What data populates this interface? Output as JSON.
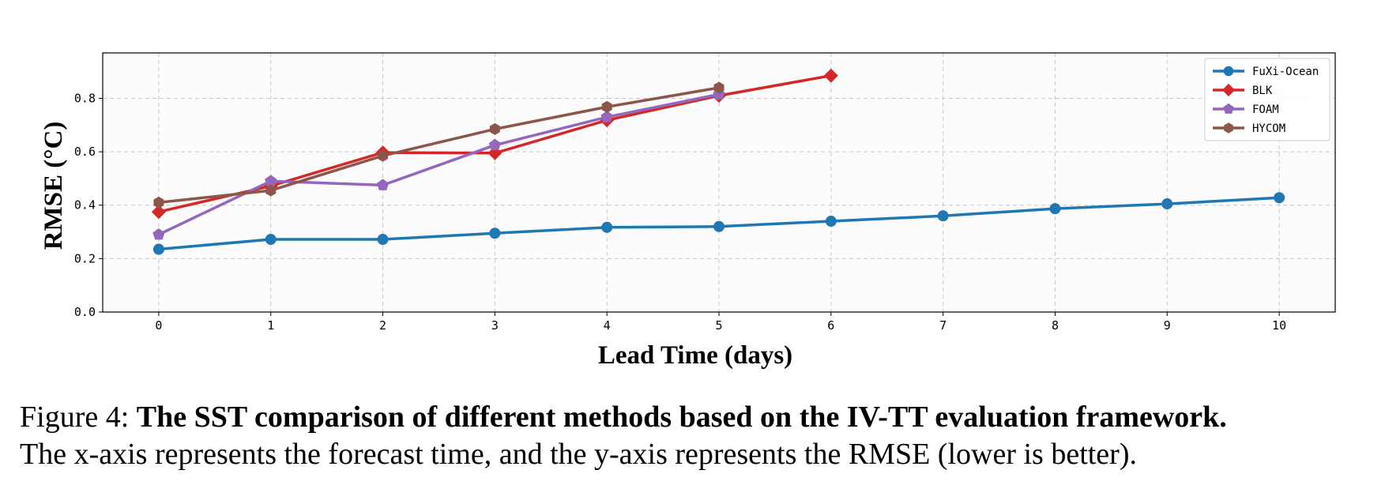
{
  "chart_data": {
    "type": "line",
    "xlabel": "Lead Time (days)",
    "ylabel": "RMSE (°C)",
    "xlim": [
      -0.5,
      10.5
    ],
    "ylim": [
      0.0,
      0.97
    ],
    "xticks": [
      0,
      1,
      2,
      3,
      4,
      5,
      6,
      7,
      8,
      9,
      10
    ],
    "yticks": [
      0.0,
      0.2,
      0.4,
      0.6,
      0.8
    ],
    "ytick_labels": [
      "0.0",
      "0.2",
      "0.4",
      "0.6",
      "0.8"
    ],
    "grid": true,
    "legend_position": "top-right",
    "series": [
      {
        "name": "FuXi-Ocean",
        "color": "#1f77b4",
        "marker": "circle",
        "x": [
          0,
          1,
          2,
          3,
          4,
          5,
          6,
          7,
          8,
          9,
          10
        ],
        "values": [
          0.235,
          0.272,
          0.272,
          0.295,
          0.317,
          0.32,
          0.34,
          0.36,
          0.387,
          0.405,
          0.428
        ]
      },
      {
        "name": "BLK",
        "color": "#d62728",
        "marker": "diamond",
        "x": [
          0,
          1,
          2,
          3,
          4,
          5,
          6
        ],
        "values": [
          0.375,
          0.472,
          0.597,
          0.595,
          0.718,
          0.81,
          0.885
        ]
      },
      {
        "name": "FOAM",
        "color": "#9467bd",
        "marker": "pentagon",
        "x": [
          0,
          1,
          2,
          3,
          4,
          5
        ],
        "values": [
          0.29,
          0.49,
          0.475,
          0.625,
          0.73,
          0.815
        ]
      },
      {
        "name": "HYCOM",
        "color": "#8c564b",
        "marker": "hexagon",
        "x": [
          0,
          1,
          2,
          3,
          4,
          5
        ],
        "values": [
          0.41,
          0.455,
          0.585,
          0.685,
          0.768,
          0.84
        ]
      }
    ]
  },
  "caption": {
    "label": "Figure 4: ",
    "bold": "The SST comparison of different methods based on the IV-TT evaluation framework.",
    "line2": "The x-axis represents the forecast time, and the y-axis represents the RMSE (lower is better)."
  }
}
